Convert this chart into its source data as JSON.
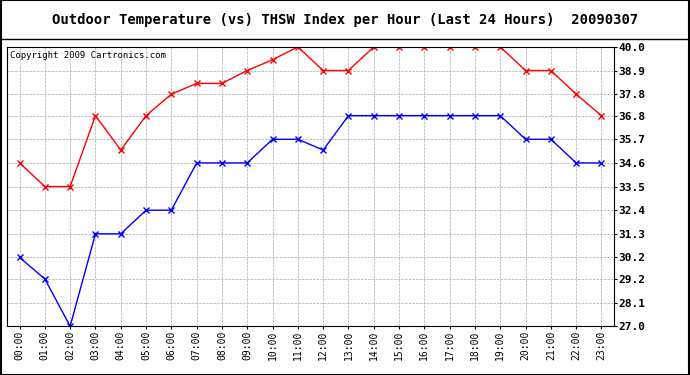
{
  "title": "Outdoor Temperature (vs) THSW Index per Hour (Last 24 Hours)  20090307",
  "copyright": "Copyright 2009 Cartronics.com",
  "x_labels": [
    "00:00",
    "01:00",
    "02:00",
    "03:00",
    "04:00",
    "05:00",
    "06:00",
    "07:00",
    "08:00",
    "09:00",
    "10:00",
    "11:00",
    "12:00",
    "13:00",
    "14:00",
    "15:00",
    "16:00",
    "17:00",
    "18:00",
    "19:00",
    "20:00",
    "21:00",
    "22:00",
    "23:00"
  ],
  "blue_data": [
    30.2,
    29.2,
    27.0,
    31.3,
    31.3,
    32.4,
    32.4,
    34.6,
    34.6,
    34.6,
    35.7,
    35.7,
    35.2,
    36.8,
    36.8,
    36.8,
    36.8,
    36.8,
    36.8,
    36.8,
    35.7,
    35.7,
    34.6,
    34.6
  ],
  "red_data": [
    34.6,
    33.5,
    33.5,
    36.8,
    35.2,
    36.8,
    37.8,
    38.3,
    38.3,
    38.9,
    39.4,
    40.0,
    38.9,
    38.9,
    40.0,
    40.0,
    40.0,
    40.0,
    40.0,
    40.0,
    38.9,
    38.9,
    37.8,
    36.8
  ],
  "ylim": [
    27.0,
    40.0
  ],
  "yticks": [
    27.0,
    28.1,
    29.2,
    30.2,
    31.3,
    32.4,
    33.5,
    34.6,
    35.7,
    36.8,
    37.8,
    38.9,
    40.0
  ],
  "blue_color": "#0000ff",
  "red_color": "#ff0000",
  "bg_color": "#ffffff",
  "grid_color": "#aaaaaa",
  "title_fontsize": 10,
  "copyright_fontsize": 6.5,
  "tick_fontsize": 7,
  "ytick_fontsize": 8
}
